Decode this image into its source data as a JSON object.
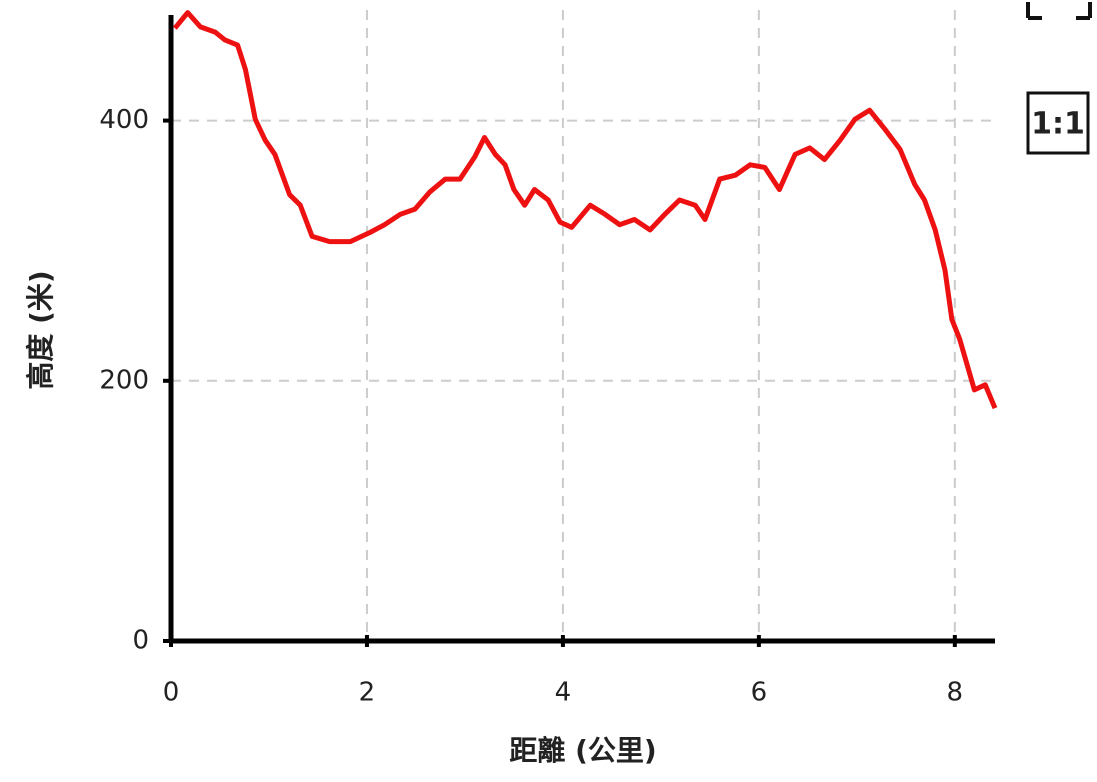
{
  "chart_data": {
    "type": "line",
    "x_label": "距離 (公里)",
    "y_label": "高度 (米)",
    "x": [
      0.04,
      0.17,
      0.3,
      0.45,
      0.55,
      0.68,
      0.76,
      0.86,
      0.96,
      1.06,
      1.21,
      1.32,
      1.44,
      1.62,
      1.83,
      2.03,
      2.18,
      2.34,
      2.49,
      2.64,
      2.8,
      2.95,
      3.1,
      3.2,
      3.31,
      3.41,
      3.5,
      3.61,
      3.71,
      3.85,
      3.97,
      4.09,
      4.28,
      4.43,
      4.58,
      4.73,
      4.89,
      5.04,
      5.19,
      5.35,
      5.45,
      5.6,
      5.76,
      5.91,
      6.06,
      6.21,
      6.37,
      6.52,
      6.67,
      6.83,
      6.98,
      7.13,
      7.29,
      7.44,
      7.59,
      7.69,
      7.8,
      7.9,
      7.97,
      8.05,
      8.2,
      8.31,
      8.41
    ],
    "series": [
      {
        "color": "#ee1111",
        "values": [
          471,
          483,
          472,
          468,
          462,
          458,
          439,
          401,
          385,
          374,
          343,
          335,
          311,
          307,
          307,
          314,
          320,
          328,
          332,
          345,
          355,
          355,
          372,
          387,
          374,
          366,
          347,
          335,
          347,
          339,
          322,
          318,
          335,
          328,
          320,
          324,
          316,
          328,
          339,
          335,
          324,
          355,
          358,
          366,
          364,
          347,
          374,
          379,
          370,
          385,
          401,
          408,
          393,
          378,
          351,
          339,
          316,
          285,
          247,
          232,
          193,
          197,
          179
        ]
      }
    ],
    "xlim": [
      0,
      8.41
    ],
    "ylim": [
      0,
      485
    ],
    "xticks": [
      0,
      2,
      4,
      6,
      8
    ],
    "yticks": [
      0,
      200,
      400
    ],
    "grid": true
  },
  "controls": {
    "reset": "1:1"
  }
}
